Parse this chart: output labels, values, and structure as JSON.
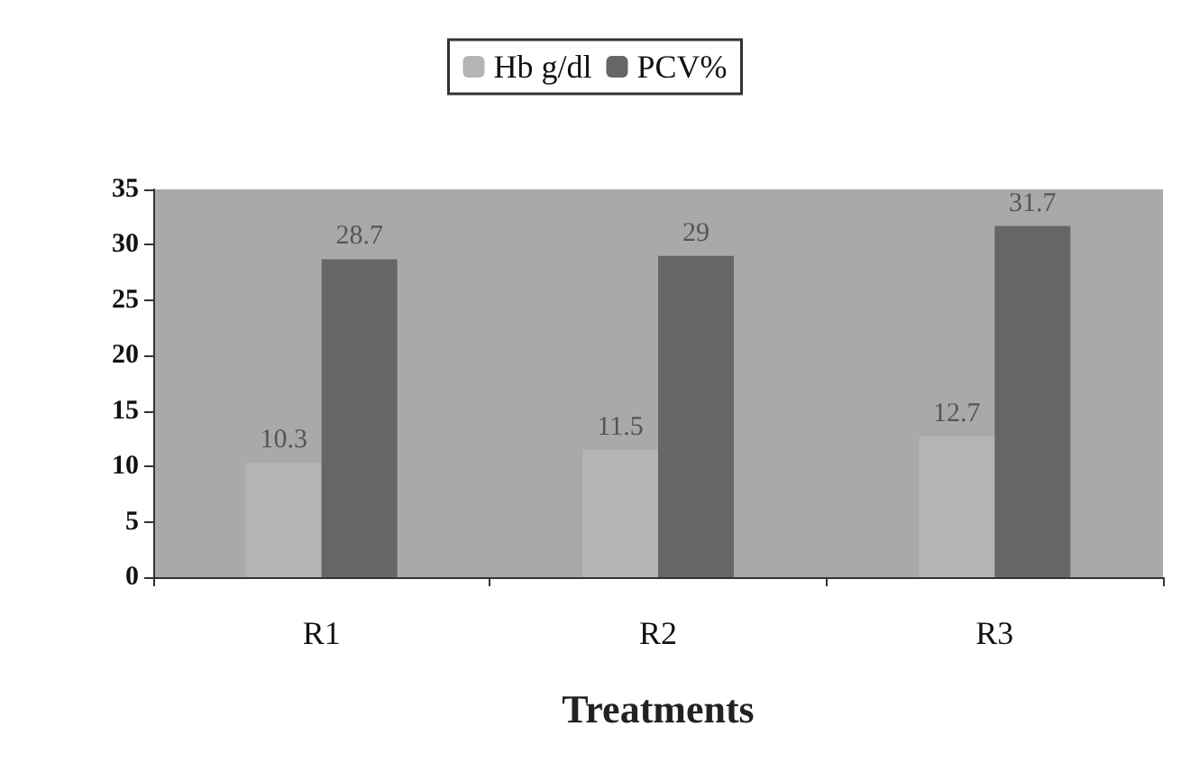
{
  "chart_data": {
    "type": "bar",
    "xlabel": "Treatments",
    "categories": [
      "R1",
      "R2",
      "R3"
    ],
    "series": [
      {
        "name": "Hb g/dl",
        "color": "#b4b4b4",
        "values": [
          10.3,
          11.5,
          12.7
        ]
      },
      {
        "name": "PCV%",
        "color": "#666666",
        "values": [
          28.7,
          29,
          31.7
        ]
      }
    ],
    "ylim": [
      0,
      35
    ],
    "yticks": [
      0,
      5,
      10,
      15,
      20,
      25,
      30,
      35
    ],
    "data_labels": true,
    "grid": false,
    "legend": "top"
  }
}
